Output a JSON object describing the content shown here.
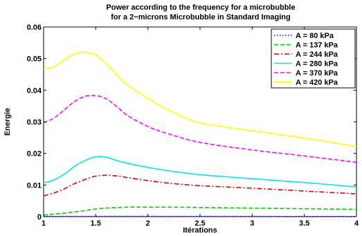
{
  "chart_data": {
    "type": "line",
    "title": [
      "Power according to the frequency for a microbubble",
      "for a 2−microns Microbubble in Standard Imaging"
    ],
    "xlabel": "Itérations",
    "ylabel": "Energie",
    "xlim": [
      1,
      4
    ],
    "ylim": [
      0,
      0.06
    ],
    "xticks": [
      1,
      1.5,
      2,
      2.5,
      3,
      3.5,
      4
    ],
    "xtick_labels": [
      "1",
      "1.5",
      "2",
      "2.5",
      "3",
      "3.5",
      "4"
    ],
    "yticks": [
      0,
      0.01,
      0.02,
      0.03,
      0.04,
      0.05,
      0.06
    ],
    "ytick_labels": [
      "0",
      "0.01",
      "0.02",
      "0.03",
      "0.04",
      "0.05",
      "0.06"
    ],
    "grid": false,
    "legend_position": "top-right",
    "series": [
      {
        "name": "A = 80 kPa",
        "color": "#0000ff",
        "dash": "dotted",
        "x": [
          1.0,
          1.2,
          1.4,
          1.6,
          2.0,
          2.5,
          3.0,
          3.5,
          4.0
        ],
        "y": [
          5e-05,
          6e-05,
          7e-05,
          8e-05,
          8e-05,
          7e-05,
          6e-05,
          5e-05,
          5e-05
        ]
      },
      {
        "name": "A = 137 kPa",
        "color": "#00cc00",
        "dash": "dashed",
        "x": [
          1.0,
          1.1,
          1.2,
          1.3,
          1.4,
          1.5,
          1.6,
          1.8,
          2.0,
          2.2,
          2.5,
          3.0,
          3.5,
          4.0
        ],
        "y": [
          0.0005,
          0.0008,
          0.0011,
          0.0015,
          0.0019,
          0.0024,
          0.0027,
          0.003,
          0.003,
          0.003,
          0.0029,
          0.0027,
          0.0025,
          0.0023
        ]
      },
      {
        "name": "A = 244 kPa",
        "color": "#dd0000",
        "dash": "dashdot",
        "x": [
          1.0,
          1.1,
          1.2,
          1.3,
          1.4,
          1.5,
          1.6,
          1.7,
          1.8,
          2.0,
          2.2,
          2.5,
          3.0,
          3.5,
          4.0
        ],
        "y": [
          0.0066,
          0.0075,
          0.0088,
          0.0105,
          0.0118,
          0.0128,
          0.0131,
          0.0129,
          0.0124,
          0.0114,
          0.0106,
          0.0098,
          0.009,
          0.0081,
          0.0072
        ]
      },
      {
        "name": "A = 280 kPa",
        "color": "#00e5ee",
        "dash": "solid",
        "x": [
          1.0,
          1.1,
          1.2,
          1.3,
          1.4,
          1.5,
          1.6,
          1.7,
          1.8,
          2.0,
          2.2,
          2.5,
          3.0,
          3.5,
          4.0
        ],
        "y": [
          0.0107,
          0.0116,
          0.0135,
          0.016,
          0.0178,
          0.0189,
          0.0188,
          0.0178,
          0.0169,
          0.0156,
          0.0145,
          0.0133,
          0.012,
          0.0108,
          0.0094
        ]
      },
      {
        "name": "A = 370 kPa",
        "color": "#ff00ff",
        "dash": "dashed",
        "x": [
          1.0,
          1.1,
          1.2,
          1.3,
          1.4,
          1.5,
          1.6,
          1.7,
          1.8,
          2.0,
          2.2,
          2.5,
          3.0,
          3.5,
          4.0
        ],
        "y": [
          0.0297,
          0.0312,
          0.0338,
          0.0365,
          0.0381,
          0.0383,
          0.0373,
          0.0349,
          0.0321,
          0.0285,
          0.0262,
          0.0235,
          0.0211,
          0.0192,
          0.0172
        ]
      },
      {
        "name": "A = 420 kPa",
        "color": "#ffff00",
        "dash": "solid",
        "x": [
          1.0,
          1.1,
          1.2,
          1.3,
          1.4,
          1.5,
          1.6,
          1.7,
          1.8,
          2.0,
          2.2,
          2.5,
          3.0,
          3.5,
          4.0
        ],
        "y": [
          0.0468,
          0.0474,
          0.0496,
          0.0515,
          0.052,
          0.0512,
          0.0484,
          0.045,
          0.0418,
          0.0374,
          0.0337,
          0.0297,
          0.0272,
          0.0249,
          0.0222
        ]
      }
    ]
  }
}
